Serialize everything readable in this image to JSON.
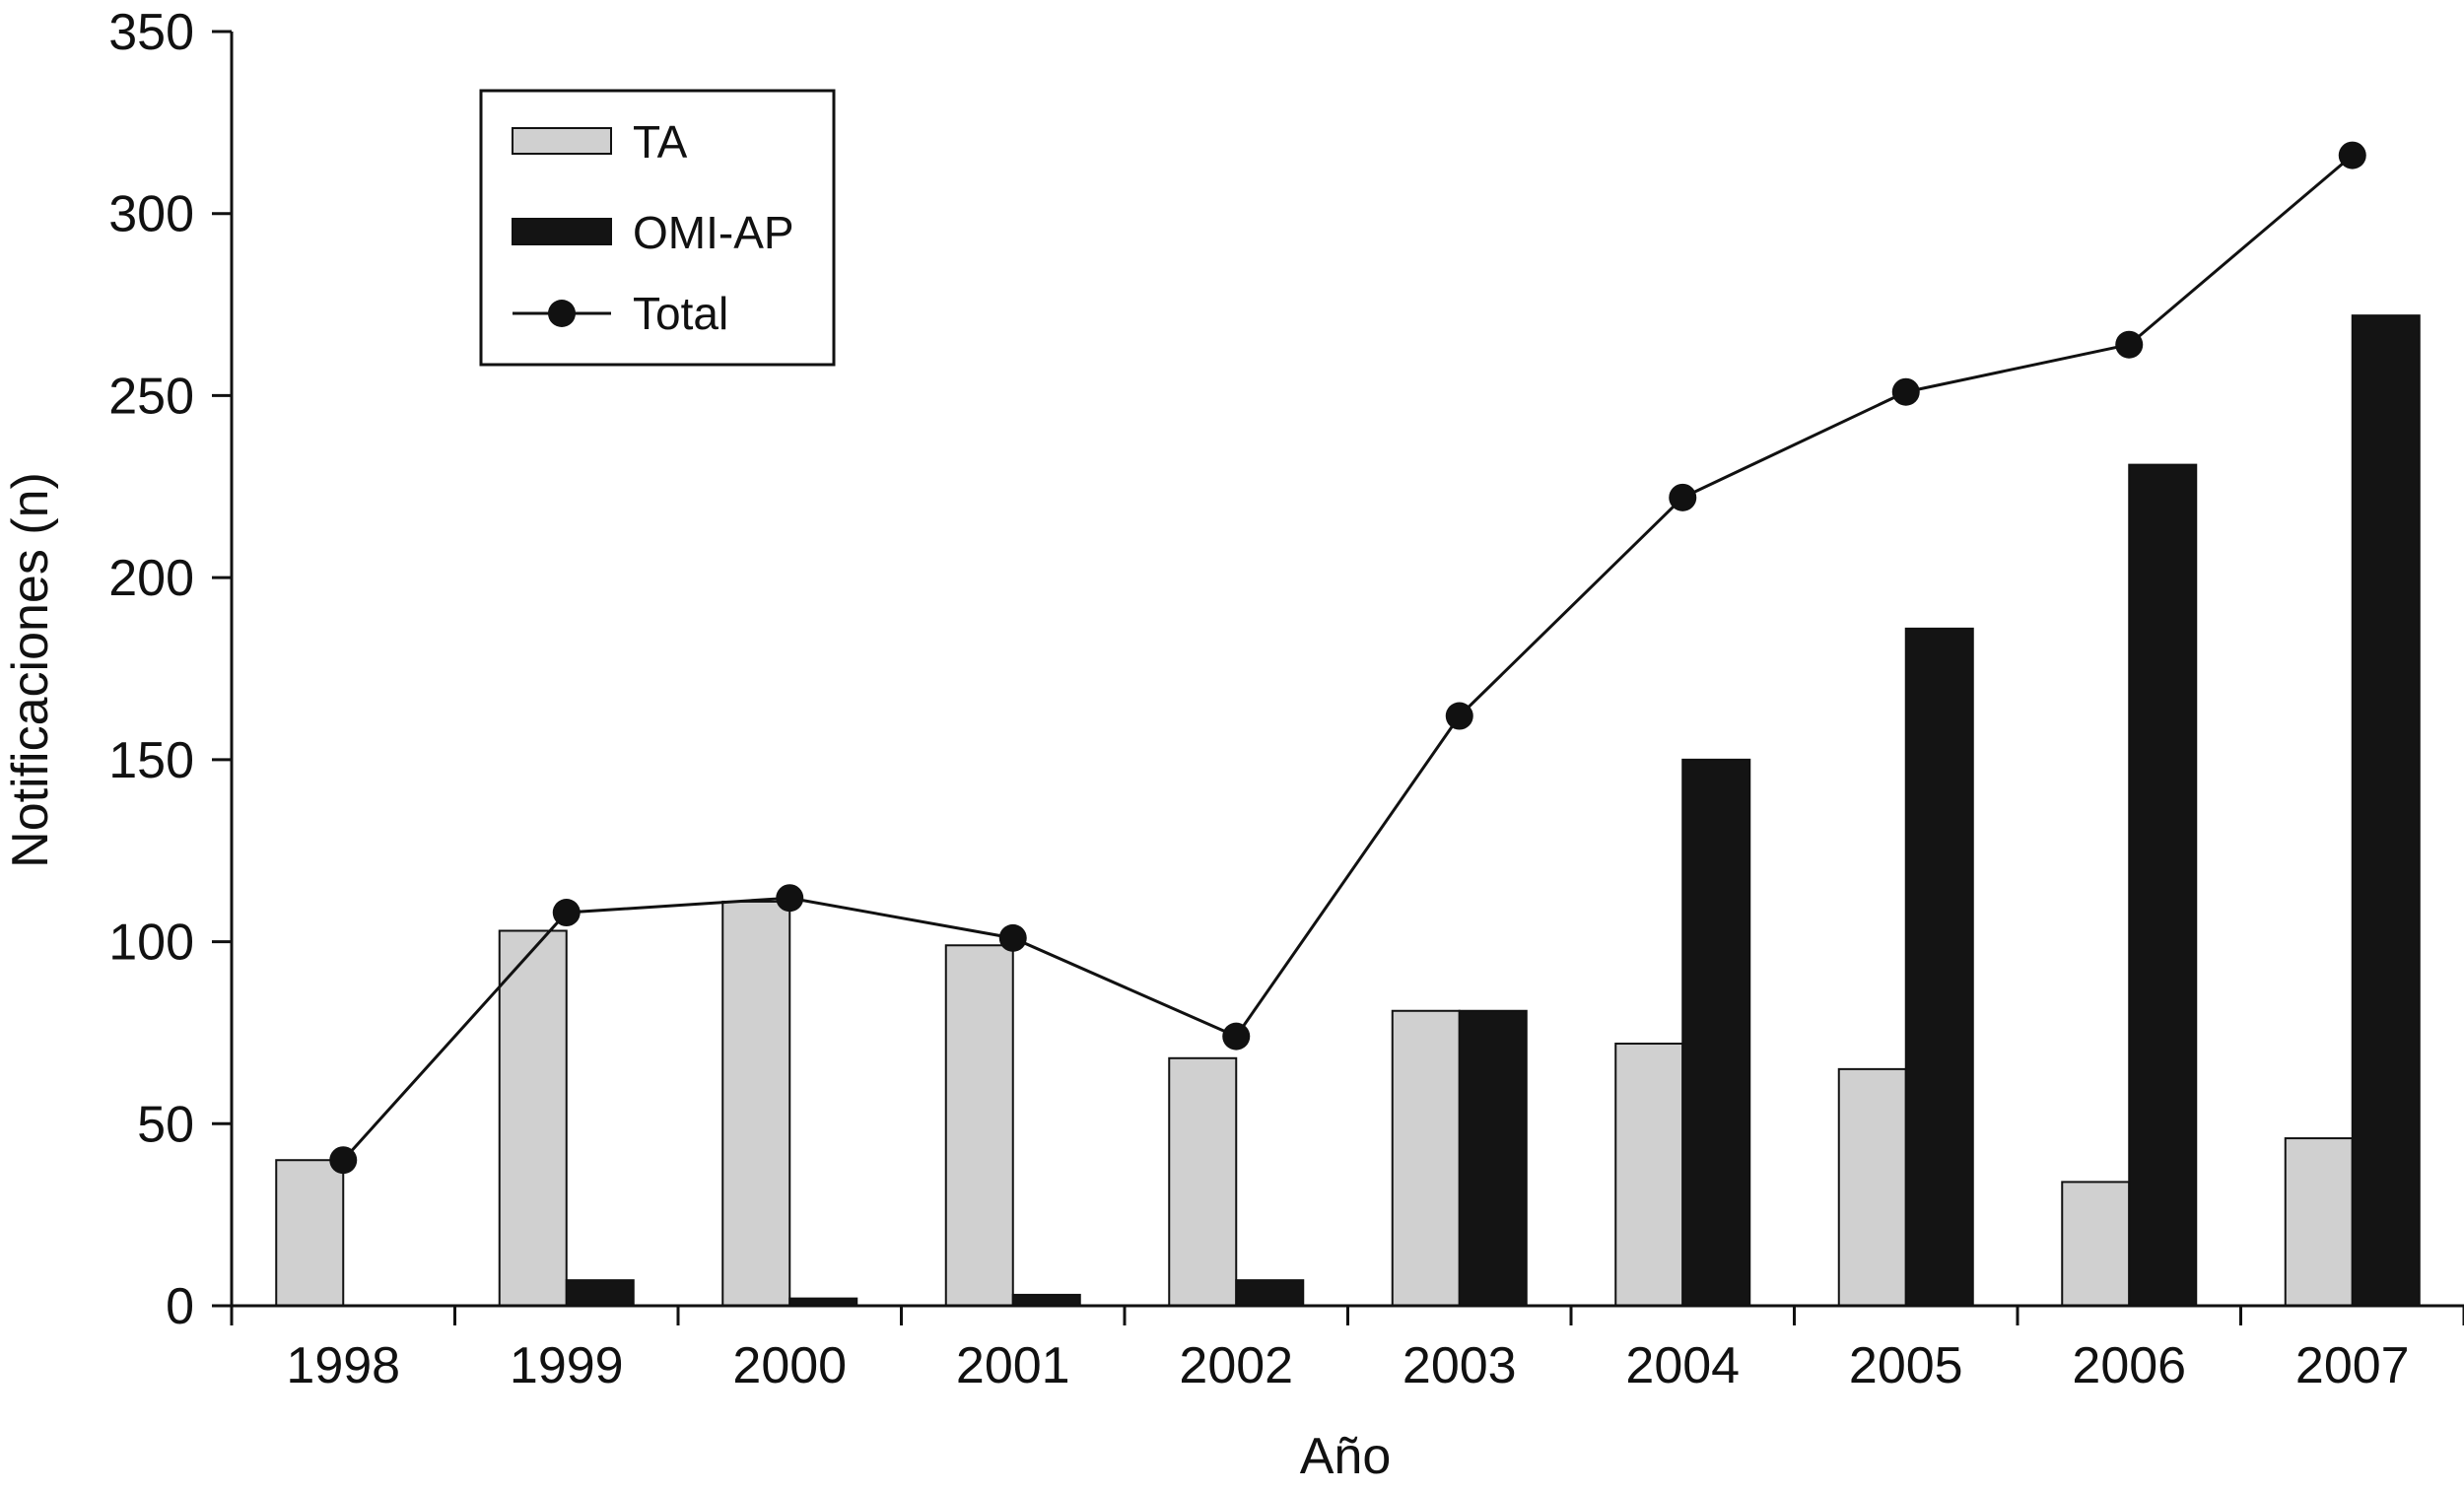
{
  "chart_data": {
    "type": "bar",
    "categories": [
      "1998",
      "1999",
      "2000",
      "2001",
      "2002",
      "2003",
      "2004",
      "2005",
      "2006",
      "2007"
    ],
    "series": [
      {
        "name": "TA",
        "kind": "bar",
        "color": "#d0d0d0",
        "values": [
          40,
          103,
          111,
          99,
          68,
          81,
          72,
          65,
          34,
          46
        ]
      },
      {
        "name": "OMI-AP",
        "kind": "bar",
        "color": "#141414",
        "values": [
          0,
          7,
          2,
          3,
          7,
          81,
          150,
          186,
          231,
          272
        ]
      },
      {
        "name": "Total",
        "kind": "line",
        "color": "#111111",
        "values": [
          40,
          108,
          112,
          101,
          74,
          162,
          222,
          251,
          264,
          316
        ]
      }
    ],
    "xlabel": "Año",
    "ylabel": "Notificaciones (n)",
    "ylim": [
      0,
      350
    ],
    "yticks": [
      "0",
      "50",
      "100",
      "150",
      "200",
      "250",
      "300",
      "350"
    ],
    "grid": false,
    "legend_position": "top-left"
  }
}
